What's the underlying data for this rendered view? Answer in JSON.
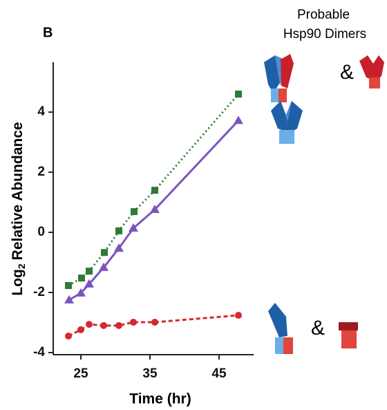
{
  "panel_label": "B",
  "header": {
    "line1": "Probable",
    "line2": "Hsp90 Dimers"
  },
  "connectors": [
    "&",
    "&"
  ],
  "chart_data": {
    "type": "scatter",
    "x_label": "Time (hr)",
    "y_label": {
      "text": "Log",
      "subscript": "2",
      "rest": "Relative Abundance"
    },
    "xlim": [
      21,
      50
    ],
    "xticks": [
      25,
      35,
      45
    ],
    "ylim": [
      -4.07,
      5.66
    ],
    "yticks": [
      -4,
      -2,
      0,
      2,
      4
    ],
    "series": [
      {
        "color": "#2f7a35",
        "marker": "square",
        "line_style": "dotted",
        "x": [
          23.2,
          25.1,
          26.2,
          28.4,
          30.5,
          32.7,
          35.7,
          47.8
        ],
        "values": [
          -1.77,
          -1.52,
          -1.29,
          -0.67,
          0.05,
          0.69,
          1.4,
          4.6
        ]
      },
      {
        "color": "#7b55bd",
        "marker": "triangle",
        "line_style": "solid",
        "x": [
          23.3,
          25.0,
          26.2,
          28.3,
          30.5,
          32.6,
          35.7,
          47.8
        ],
        "values": [
          -2.25,
          -2.02,
          -1.72,
          -1.17,
          -0.53,
          0.14,
          0.76,
          3.72
        ]
      },
      {
        "color": "#d42a2f",
        "marker": "circle",
        "line_style": "dashed",
        "x": [
          23.2,
          25.0,
          26.2,
          28.3,
          30.5,
          32.6,
          35.7,
          47.8
        ],
        "values": [
          -3.45,
          -3.24,
          -3.06,
          -3.1,
          -3.1,
          -2.99,
          -2.99,
          -2.76
        ]
      }
    ]
  }
}
